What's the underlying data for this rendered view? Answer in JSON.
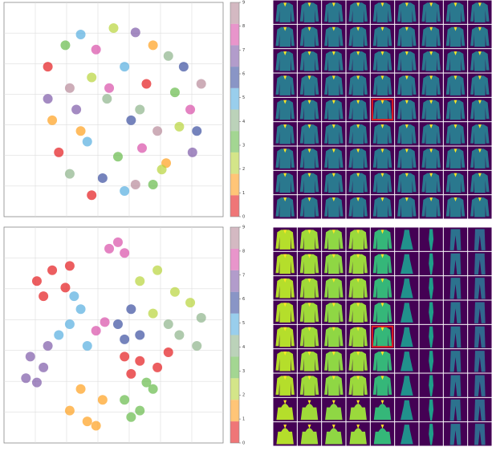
{
  "chart_data": [
    {
      "type": "scatter",
      "x": [
        20,
        28,
        35,
        42,
        50,
        60,
        68,
        75,
        82,
        30,
        40,
        55,
        65,
        78,
        85,
        22,
        33,
        47,
        58,
        70,
        80,
        25,
        38,
        52,
        63,
        74,
        86,
        30,
        45,
        60,
        72,
        40,
        55,
        68,
        48,
        35,
        20,
        62,
        88,
        90
      ],
      "y": [
        70,
        80,
        85,
        78,
        88,
        86,
        80,
        75,
        70,
        60,
        65,
        70,
        62,
        58,
        50,
        45,
        50,
        55,
        45,
        40,
        42,
        30,
        35,
        28,
        32,
        25,
        30,
        20,
        18,
        15,
        22,
        10,
        12,
        15,
        60,
        40,
        55,
        50,
        40,
        62
      ],
      "c": [
        0,
        3,
        5,
        8,
        2,
        7,
        1,
        4,
        6,
        9,
        2,
        5,
        0,
        3,
        8,
        1,
        7,
        4,
        6,
        9,
        2,
        0,
        5,
        3,
        8,
        1,
        7,
        4,
        6,
        9,
        2,
        0,
        5,
        3,
        8,
        1,
        7,
        4,
        6,
        9
      ],
      "xlim": [
        0,
        100
      ],
      "ylim": [
        0,
        100
      ],
      "grid": true,
      "clim": [
        0,
        9
      ],
      "cticks": [
        0,
        1,
        2,
        3,
        4,
        5,
        6,
        7,
        8,
        9
      ],
      "colors": [
        "#e41a1c",
        "#ff9f1c",
        "#b8d43a",
        "#66bb4a",
        "#8db48a",
        "#55aee0",
        "#3b4fa0",
        "#7e5aa8",
        "#d84fa8",
        "#b88a9a"
      ]
    },
    {
      "type": "scatter",
      "x": [
        15,
        22,
        28,
        18,
        30,
        55,
        62,
        70,
        75,
        58,
        12,
        18,
        10,
        20,
        15,
        30,
        35,
        25,
        38,
        32,
        48,
        52,
        55,
        42,
        46,
        30,
        38,
        45,
        35,
        42,
        55,
        62,
        68,
        58,
        65,
        62,
        70,
        78,
        85,
        68,
        52,
        58,
        62,
        55,
        80,
        88,
        75,
        90
      ],
      "y": [
        75,
        80,
        72,
        68,
        82,
        40,
        38,
        35,
        42,
        32,
        40,
        35,
        30,
        45,
        28,
        55,
        62,
        50,
        45,
        68,
        90,
        93,
        88,
        52,
        56,
        15,
        10,
        20,
        25,
        8,
        20,
        15,
        25,
        12,
        28,
        75,
        80,
        70,
        65,
        60,
        55,
        62,
        50,
        48,
        50,
        45,
        55,
        58
      ],
      "c": [
        0,
        0,
        0,
        0,
        0,
        0,
        0,
        0,
        0,
        0,
        7,
        7,
        7,
        7,
        7,
        5,
        5,
        5,
        5,
        5,
        8,
        8,
        8,
        8,
        8,
        1,
        1,
        1,
        1,
        1,
        3,
        3,
        3,
        3,
        3,
        2,
        2,
        2,
        2,
        2,
        6,
        6,
        6,
        6,
        4,
        4,
        4,
        4
      ],
      "xlim": [
        0,
        100
      ],
      "ylim": [
        0,
        100
      ],
      "grid": true,
      "clim": [
        0,
        9
      ],
      "cticks": [
        0,
        1,
        2,
        3,
        4,
        5,
        6,
        7,
        8,
        9
      ],
      "colors": [
        "#e41a1c",
        "#ff9f1c",
        "#b8d43a",
        "#66bb4a",
        "#8db48a",
        "#55aee0",
        "#3b4fa0",
        "#7e5aa8",
        "#d84fa8",
        "#b88a9a"
      ]
    }
  ]
}
